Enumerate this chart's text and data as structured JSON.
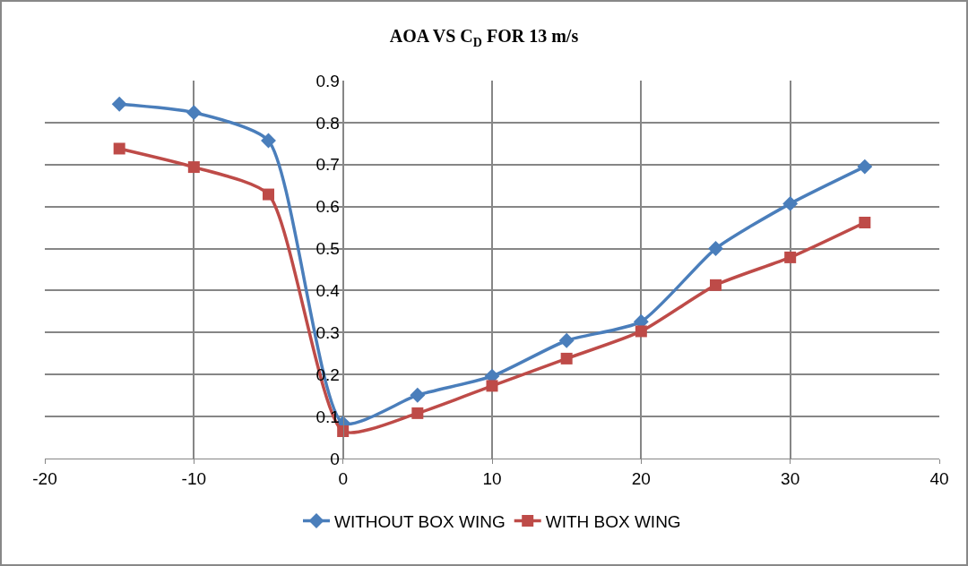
{
  "chart_data": {
    "type": "line",
    "title": "AOA VS C$_{D}$ FOR 13 m/s",
    "x": [
      -15,
      -10,
      -5,
      0,
      5,
      10,
      15,
      20,
      25,
      30,
      35
    ],
    "series": [
      {
        "name": "WITHOUT BOX WING",
        "color": "#4a7ebb",
        "marker": "diamond",
        "values": [
          0.844,
          0.824,
          0.757,
          0.084,
          0.151,
          0.196,
          0.281,
          0.326,
          0.5,
          0.607,
          0.695
        ]
      },
      {
        "name": "WITH BOX WING",
        "color": "#be4b48",
        "marker": "square",
        "values": [
          0.738,
          0.694,
          0.629,
          0.065,
          0.108,
          0.173,
          0.238,
          0.303,
          0.413,
          0.479,
          0.562
        ]
      }
    ],
    "xlim": [
      -20,
      40
    ],
    "xticks": [
      -20,
      -10,
      0,
      10,
      20,
      30,
      40
    ],
    "ylim": [
      0,
      0.9
    ],
    "yticks": [
      0,
      0.1,
      0.2,
      0.3,
      0.4,
      0.5,
      0.6,
      0.7,
      0.8,
      0.9
    ],
    "grid": true,
    "legend": "bottom",
    "line_style": "solid"
  }
}
